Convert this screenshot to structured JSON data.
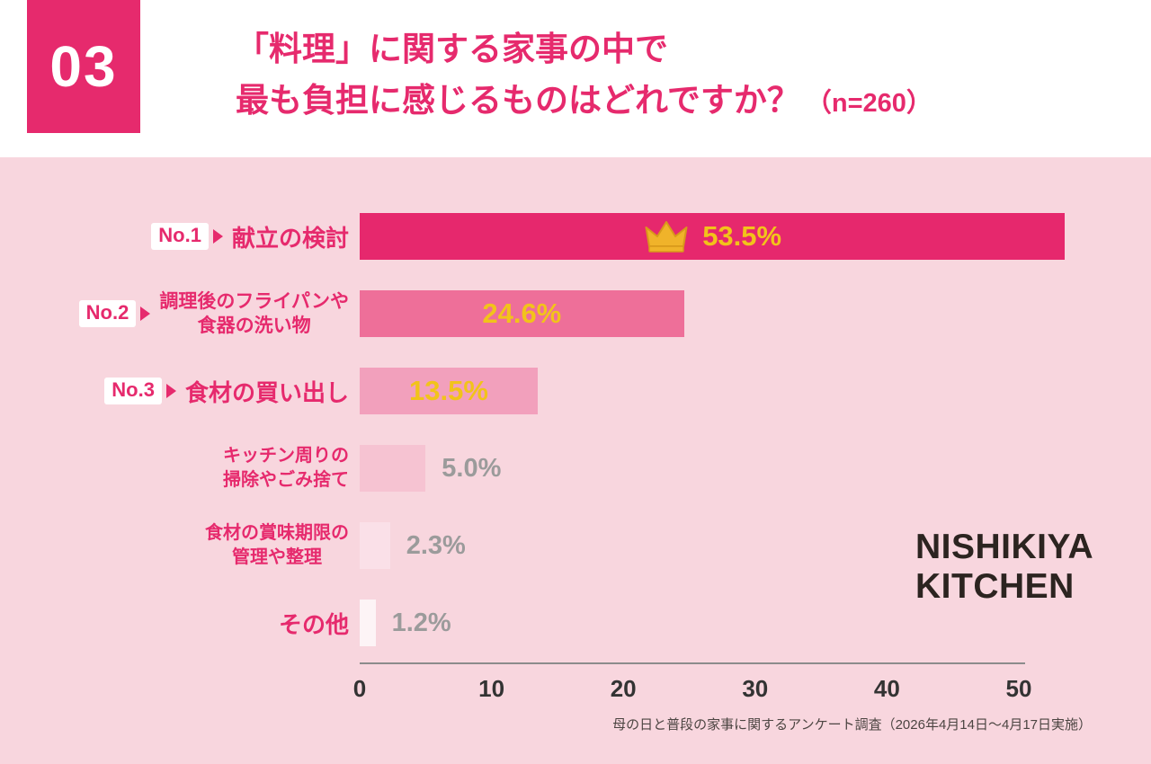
{
  "colors": {
    "accent": "#e62a6d",
    "background": "#f8d6de",
    "header_bg": "#ffffff",
    "badge_bg": "#ffffff",
    "value_yellow": "#f2c31a",
    "value_gray": "#9b9b9b",
    "axis": "#8c8c8c",
    "tick_text": "#333333",
    "logo": "#2c2420",
    "footer_text": "#4c4542"
  },
  "header": {
    "number": "03",
    "title_line1": "「料理」に関する家事の中で",
    "title_line2": "最も負担に感じるものはどれですか？",
    "sample_size": "（n=260）"
  },
  "chart_data": {
    "type": "bar",
    "orientation": "horizontal",
    "title": "「料理」に関する家事の中で最も負担に感じるものはどれですか？",
    "sample_n": 260,
    "xlim": [
      0,
      50
    ],
    "x_ticks": [
      "0",
      "10",
      "20",
      "30",
      "40",
      "50"
    ],
    "grid": false,
    "legend": false,
    "rows": [
      {
        "rank": "No.1",
        "label_lines": [
          "献立の検討"
        ],
        "value": 53.5,
        "value_label": "53.5%",
        "bar_color": "#e6286d",
        "value_color": "#f2c31a",
        "crown": true
      },
      {
        "rank": "No.2",
        "label_lines": [
          "調理後のフライパンや",
          "食器の洗い物"
        ],
        "value": 24.6,
        "value_label": "24.6%",
        "bar_color": "#ee6f99",
        "value_color": "#f2c31a",
        "crown": false
      },
      {
        "rank": "No.3",
        "label_lines": [
          "食材の買い出し"
        ],
        "value": 13.5,
        "value_label": "13.5%",
        "bar_color": "#f2a0bc",
        "value_color": "#f2c31a",
        "crown": false
      },
      {
        "rank": null,
        "label_lines": [
          "キッチン周りの",
          "掃除やごみ捨て"
        ],
        "value": 5.0,
        "value_label": "5.0%",
        "bar_color": "#f6c3d2",
        "value_color": "#9b9b9b",
        "crown": false
      },
      {
        "rank": null,
        "label_lines": [
          "食材の賞味期限の",
          "管理や整理"
        ],
        "value": 2.3,
        "value_label": "2.3%",
        "bar_color": "#fae0e8",
        "value_color": "#9b9b9b",
        "crown": false
      },
      {
        "rank": null,
        "label_lines": [
          "その他"
        ],
        "value": 1.2,
        "value_label": "1.2%",
        "bar_color": "#fdf4f6",
        "value_color": "#9b9b9b",
        "crown": false
      }
    ]
  },
  "logo": {
    "line1": "NISHIKIYA",
    "line2": "KITCHEN"
  },
  "footer": {
    "note": "母の日と普段の家事に関するアンケート調査（2026年4月14日～4月17日実施）"
  }
}
